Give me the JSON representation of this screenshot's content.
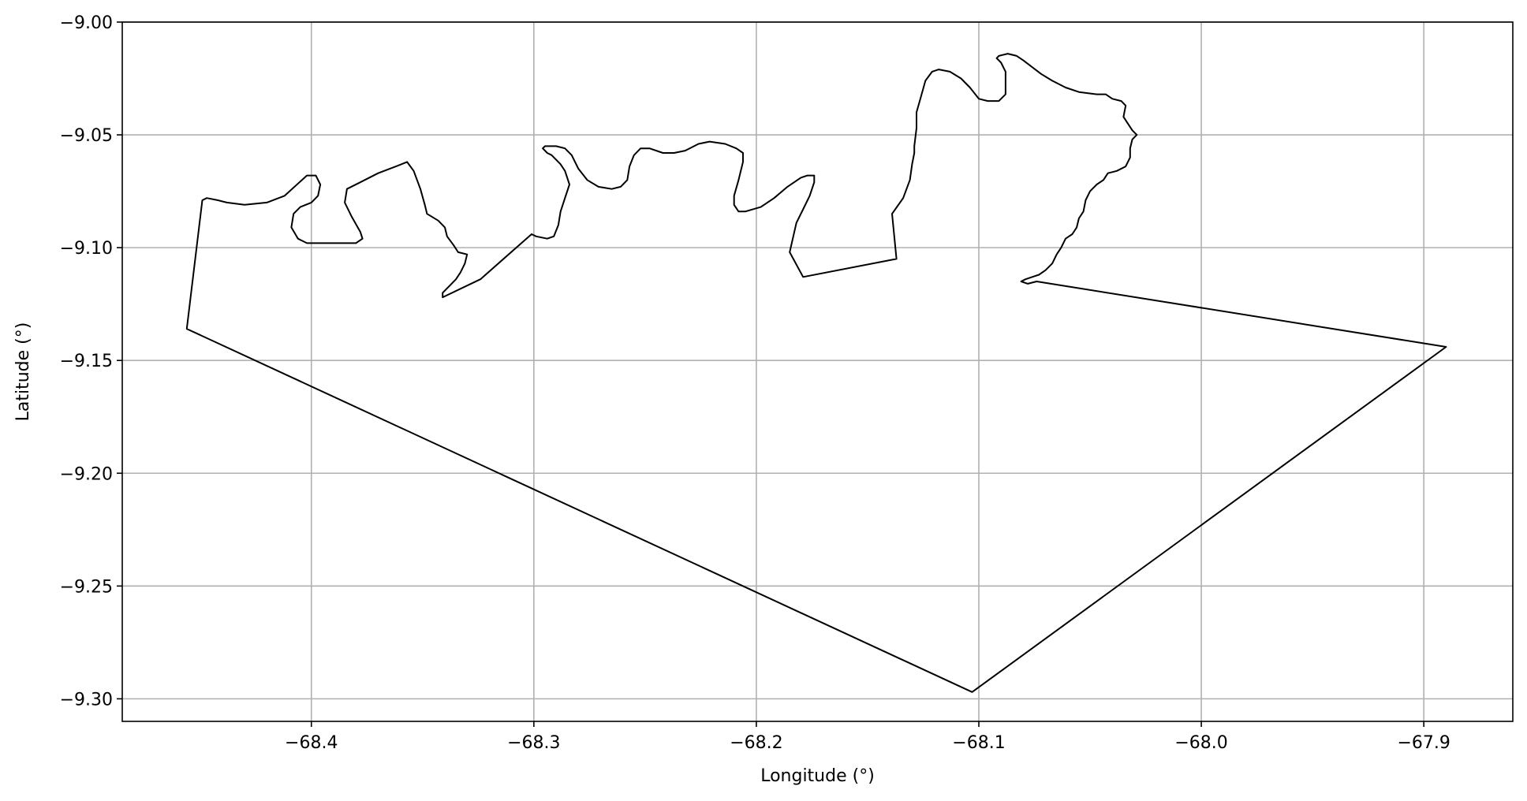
{
  "chart_data": {
    "type": "line",
    "title": "",
    "xlabel": "Longitude (°)",
    "ylabel": "Latitude (°)",
    "xlim": [
      -68.485,
      -67.86
    ],
    "ylim": [
      -9.31,
      -9.0
    ],
    "grid": true,
    "xticks": [
      -68.4,
      -68.3,
      -68.2,
      -68.1,
      -68.0,
      -67.9
    ],
    "xtick_labels": [
      "−68.4",
      "−68.3",
      "−68.2",
      "−68.1",
      "−68.0",
      "−67.9"
    ],
    "yticks": [
      -9.0,
      -9.05,
      -9.1,
      -9.15,
      -9.2,
      -9.25,
      -9.3
    ],
    "ytick_labels": [
      "−9.00",
      "−9.05",
      "−9.10",
      "−9.15",
      "−9.20",
      "−9.25",
      "−9.30"
    ],
    "colors": {
      "line": "#000000",
      "grid": "#b0b0b0"
    },
    "series": [
      {
        "points": [
          [
            -68.456,
            -9.136
          ],
          [
            -68.449,
            -9.079
          ],
          [
            -68.447,
            -9.078
          ],
          [
            -68.442,
            -9.079
          ],
          [
            -68.438,
            -9.08
          ],
          [
            -68.43,
            -9.081
          ],
          [
            -68.42,
            -9.08
          ],
          [
            -68.412,
            -9.077
          ],
          [
            -68.402,
            -9.068
          ],
          [
            -68.398,
            -9.068
          ],
          [
            -68.396,
            -9.072
          ],
          [
            -68.397,
            -9.077
          ],
          [
            -68.4,
            -9.08
          ],
          [
            -68.405,
            -9.082
          ],
          [
            -68.408,
            -9.085
          ],
          [
            -68.409,
            -9.091
          ],
          [
            -68.406,
            -9.096
          ],
          [
            -68.402,
            -9.098
          ],
          [
            -68.392,
            -9.098
          ],
          [
            -68.385,
            -9.098
          ],
          [
            -68.38,
            -9.098
          ],
          [
            -68.377,
            -9.096
          ],
          [
            -68.378,
            -9.093
          ],
          [
            -68.382,
            -9.086
          ],
          [
            -68.385,
            -9.08
          ],
          [
            -68.384,
            -9.074
          ],
          [
            -68.378,
            -9.071
          ],
          [
            -68.37,
            -9.067
          ],
          [
            -68.362,
            -9.064
          ],
          [
            -68.357,
            -9.062
          ],
          [
            -68.354,
            -9.066
          ],
          [
            -68.351,
            -9.074
          ],
          [
            -68.349,
            -9.081
          ],
          [
            -68.348,
            -9.085
          ],
          [
            -68.343,
            -9.088
          ],
          [
            -68.34,
            -9.091
          ],
          [
            -68.339,
            -9.095
          ],
          [
            -68.336,
            -9.099
          ],
          [
            -68.334,
            -9.102
          ],
          [
            -68.33,
            -9.103
          ],
          [
            -68.331,
            -9.107
          ],
          [
            -68.333,
            -9.111
          ],
          [
            -68.335,
            -9.114
          ],
          [
            -68.338,
            -9.117
          ],
          [
            -68.341,
            -9.12
          ],
          [
            -68.341,
            -9.122
          ],
          [
            -68.324,
            -9.114
          ],
          [
            -68.301,
            -9.094
          ],
          [
            -68.299,
            -9.095
          ],
          [
            -68.294,
            -9.096
          ],
          [
            -68.291,
            -9.095
          ],
          [
            -68.289,
            -9.09
          ],
          [
            -68.288,
            -9.084
          ],
          [
            -68.286,
            -9.078
          ],
          [
            -68.284,
            -9.072
          ],
          [
            -68.286,
            -9.066
          ],
          [
            -68.288,
            -9.063
          ],
          [
            -68.292,
            -9.059
          ],
          [
            -68.294,
            -9.058
          ],
          [
            -68.296,
            -9.056
          ],
          [
            -68.295,
            -9.055
          ],
          [
            -68.29,
            -9.055
          ],
          [
            -68.286,
            -9.056
          ],
          [
            -68.283,
            -9.059
          ],
          [
            -68.28,
            -9.065
          ],
          [
            -68.276,
            -9.07
          ],
          [
            -68.271,
            -9.073
          ],
          [
            -68.265,
            -9.074
          ],
          [
            -68.261,
            -9.073
          ],
          [
            -68.258,
            -9.07
          ],
          [
            -68.257,
            -9.064
          ],
          [
            -68.255,
            -9.059
          ],
          [
            -68.252,
            -9.056
          ],
          [
            -68.248,
            -9.056
          ],
          [
            -68.242,
            -9.058
          ],
          [
            -68.237,
            -9.058
          ],
          [
            -68.232,
            -9.057
          ],
          [
            -68.226,
            -9.054
          ],
          [
            -68.221,
            -9.053
          ],
          [
            -68.214,
            -9.054
          ],
          [
            -68.209,
            -9.056
          ],
          [
            -68.206,
            -9.058
          ],
          [
            -68.206,
            -9.062
          ],
          [
            -68.208,
            -9.07
          ],
          [
            -68.21,
            -9.077
          ],
          [
            -68.21,
            -9.081
          ],
          [
            -68.208,
            -9.084
          ],
          [
            -68.205,
            -9.084
          ],
          [
            -68.198,
            -9.082
          ],
          [
            -68.192,
            -9.078
          ],
          [
            -68.186,
            -9.073
          ],
          [
            -68.18,
            -9.069
          ],
          [
            -68.177,
            -9.068
          ],
          [
            -68.174,
            -9.068
          ],
          [
            -68.174,
            -9.071
          ],
          [
            -68.176,
            -9.077
          ],
          [
            -68.179,
            -9.083
          ],
          [
            -68.182,
            -9.089
          ],
          [
            -68.185,
            -9.102
          ],
          [
            -68.179,
            -9.113
          ],
          [
            -68.137,
            -9.105
          ],
          [
            -68.139,
            -9.085
          ],
          [
            -68.134,
            -9.078
          ],
          [
            -68.131,
            -9.07
          ],
          [
            -68.13,
            -9.063
          ],
          [
            -68.129,
            -9.058
          ],
          [
            -68.129,
            -9.055
          ],
          [
            -68.128,
            -9.047
          ],
          [
            -68.128,
            -9.04
          ],
          [
            -68.126,
            -9.033
          ],
          [
            -68.124,
            -9.026
          ],
          [
            -68.121,
            -9.022
          ],
          [
            -68.118,
            -9.021
          ],
          [
            -68.113,
            -9.022
          ],
          [
            -68.108,
            -9.025
          ],
          [
            -68.104,
            -9.029
          ],
          [
            -68.1,
            -9.034
          ],
          [
            -68.096,
            -9.035
          ],
          [
            -68.091,
            -9.035
          ],
          [
            -68.088,
            -9.032
          ],
          [
            -68.088,
            -9.026
          ],
          [
            -68.088,
            -9.022
          ],
          [
            -68.09,
            -9.018
          ],
          [
            -68.092,
            -9.016
          ],
          [
            -68.091,
            -9.015
          ],
          [
            -68.087,
            -9.014
          ],
          [
            -68.083,
            -9.015
          ],
          [
            -68.08,
            -9.017
          ],
          [
            -68.076,
            -9.02
          ],
          [
            -68.072,
            -9.023
          ],
          [
            -68.067,
            -9.026
          ],
          [
            -68.061,
            -9.029
          ],
          [
            -68.055,
            -9.031
          ],
          [
            -68.047,
            -9.032
          ],
          [
            -68.043,
            -9.032
          ],
          [
            -68.04,
            -9.034
          ],
          [
            -68.036,
            -9.035
          ],
          [
            -68.034,
            -9.037
          ],
          [
            -68.035,
            -9.042
          ],
          [
            -68.033,
            -9.045
          ],
          [
            -68.031,
            -9.048
          ],
          [
            -68.029,
            -9.05
          ],
          [
            -68.031,
            -9.052
          ],
          [
            -68.032,
            -9.056
          ],
          [
            -68.032,
            -9.06
          ],
          [
            -68.034,
            -9.064
          ],
          [
            -68.038,
            -9.066
          ],
          [
            -68.042,
            -9.067
          ],
          [
            -68.044,
            -9.07
          ],
          [
            -68.047,
            -9.072
          ],
          [
            -68.05,
            -9.075
          ],
          [
            -68.052,
            -9.079
          ],
          [
            -68.053,
            -9.084
          ],
          [
            -68.055,
            -9.087
          ],
          [
            -68.056,
            -9.091
          ],
          [
            -68.058,
            -9.094
          ],
          [
            -68.061,
            -9.096
          ],
          [
            -68.063,
            -9.1
          ],
          [
            -68.065,
            -9.103
          ],
          [
            -68.067,
            -9.107
          ],
          [
            -68.07,
            -9.11
          ],
          [
            -68.073,
            -9.112
          ],
          [
            -68.076,
            -9.113
          ],
          [
            -68.079,
            -9.114
          ],
          [
            -68.081,
            -9.115
          ],
          [
            -68.078,
            -9.116
          ],
          [
            -68.074,
            -9.115
          ],
          [
            -67.89,
            -9.144
          ],
          [
            -68.103,
            -9.297
          ],
          [
            -68.456,
            -9.136
          ]
        ]
      }
    ]
  }
}
